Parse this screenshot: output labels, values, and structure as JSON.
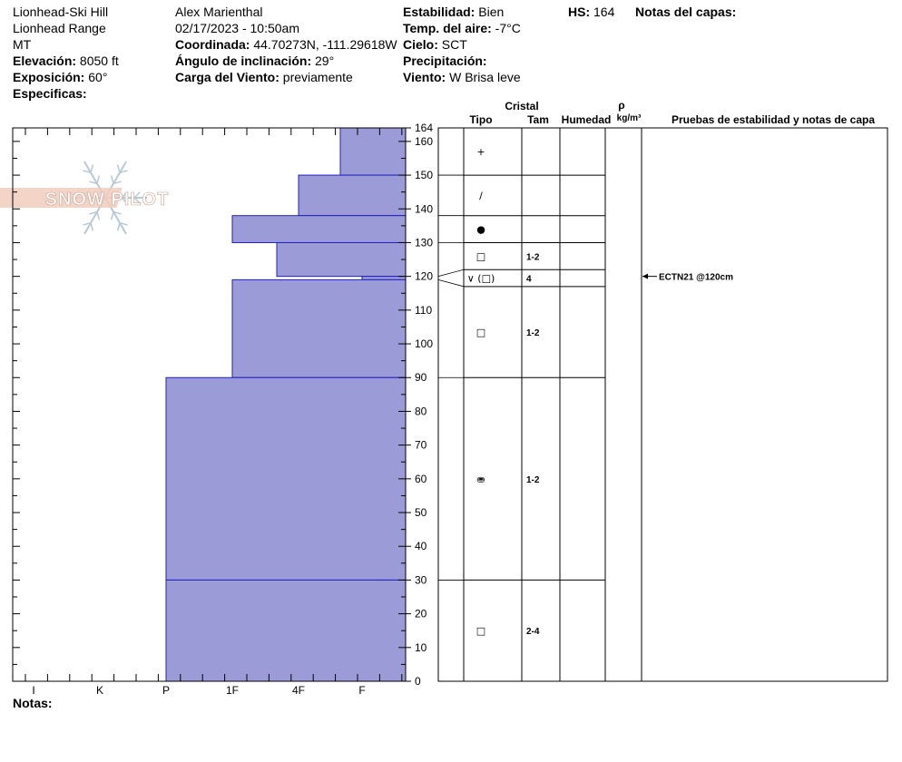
{
  "header": {
    "location": "Lionhead-Ski Hill",
    "range": "Lionhead Range",
    "state": "MT",
    "elevation_label": "Elevación:",
    "elevation_value": "8050 ft",
    "aspect_label": "Exposición:",
    "aspect_value": "60°",
    "specifics_label": "Especificas:",
    "observer": "Alex Marienthal",
    "datetime": "02/17/2023 - 10:50am",
    "coord_label": "Coordinada:",
    "coord_value": "44.70273N, -111.29618W",
    "slope_label": "Ángulo de inclinación:",
    "slope_value": "29°",
    "windload_label": "Carga del Viento:",
    "windload_value": "previamente",
    "stability_label": "Estabilidad:",
    "stability_value": "Bien",
    "airtemp_label": "Temp. del aire:",
    "airtemp_value": "-7°C",
    "sky_label": "Cielo:",
    "sky_value": "SCT",
    "precip_label": "Precipitación:",
    "precip_value": "",
    "wind_label": "Viento:",
    "wind_value": "W Brisa leve",
    "hs_label": "HS:",
    "hs_value": "164",
    "layer_notes_label": "Notas del capas:",
    "notes_label": "Notas:"
  },
  "table_headers": {
    "crystal": "Cristal",
    "type": "Tipo",
    "size": "Tam",
    "moisture": "Humedad",
    "rho": "ρ",
    "density_unit": "kg/m³",
    "tests": "Pruebas de estabilidad y notas de capa"
  },
  "watermark": "SNOW PILOT",
  "chart_data": {
    "type": "bar",
    "title": "",
    "x_label": "",
    "y_label": "",
    "x_categories": [
      "I",
      "K",
      "P",
      "1F",
      "4F",
      "F"
    ],
    "y_range": [
      0,
      164
    ],
    "y_ticks": [
      0,
      10,
      20,
      30,
      40,
      50,
      60,
      70,
      80,
      90,
      100,
      110,
      120,
      130,
      140,
      150,
      160,
      164
    ],
    "hardness_profile": [
      {
        "bottom": 150,
        "top": 164,
        "hardness": "F+"
      },
      {
        "bottom": 138,
        "top": 150,
        "hardness": "4F"
      },
      {
        "bottom": 130,
        "top": 138,
        "hardness": "1F"
      },
      {
        "bottom": 120,
        "top": 130,
        "hardness": "4F+"
      },
      {
        "bottom": 119,
        "top": 120,
        "hardness": "F"
      },
      {
        "bottom": 90,
        "top": 119,
        "hardness": "1F"
      },
      {
        "bottom": 30,
        "top": 90,
        "hardness": "P"
      },
      {
        "bottom": 0,
        "top": 30,
        "hardness": "P"
      }
    ],
    "layer_boundaries": [
      164,
      150,
      138,
      130,
      122,
      117,
      90,
      30,
      0
    ],
    "layers": [
      {
        "symbol": "+",
        "size": ""
      },
      {
        "symbol": "/",
        "size": ""
      },
      {
        "symbol": "●",
        "size": ""
      },
      {
        "symbol": "□",
        "size": "1-2"
      },
      {
        "symbol": "∨ (□)",
        "size": "4"
      },
      {
        "symbol": "□",
        "size": "1-2"
      },
      {
        "symbol": "⛂",
        "size": "1-2"
      },
      {
        "symbol": "□",
        "size": "2-4"
      }
    ],
    "tests": [
      {
        "depth": 120,
        "label": "ECTN21 @120cm"
      }
    ]
  }
}
